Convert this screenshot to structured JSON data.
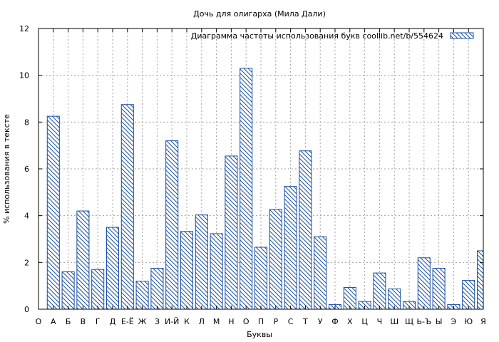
{
  "chart_data": {
    "type": "bar",
    "title": "Дочь для олигарха (Мила Дали)",
    "xlabel": "Буквы",
    "ylabel": "% использования в тексте",
    "ylim": [
      0,
      12
    ],
    "yticks": [
      0,
      2,
      4,
      6,
      8,
      10,
      12
    ],
    "grid": true,
    "legend": {
      "placement": "top-right",
      "label": "Диаграмма частоты использования букв  coollib.net/b/554624"
    },
    "colors": {
      "bar_stroke": "#1a4fa3",
      "hatch": "#1a4fa3"
    },
    "categories": [
      "О",
      "А",
      "Б",
      "В",
      "Г",
      "Д",
      "Е-Ё",
      "Ж",
      "З",
      "И-Й",
      "К",
      "Л",
      "М",
      "Н",
      "О",
      "П",
      "Р",
      "С",
      "Т",
      "У",
      "Ф",
      "Х",
      "Ц",
      "Ч",
      "Ш",
      "Щ",
      "Ь-Ъ",
      "Ы",
      "Э",
      "Ю",
      "Я"
    ],
    "values": [
      null,
      8.25,
      1.6,
      4.2,
      1.7,
      3.5,
      8.75,
      1.2,
      1.75,
      7.2,
      3.33,
      4.03,
      3.23,
      6.55,
      10.3,
      2.65,
      4.27,
      5.25,
      6.77,
      3.1,
      0.2,
      0.93,
      0.33,
      1.55,
      0.87,
      0.33,
      2.2,
      1.75,
      0.2,
      1.23,
      2.5
    ]
  }
}
